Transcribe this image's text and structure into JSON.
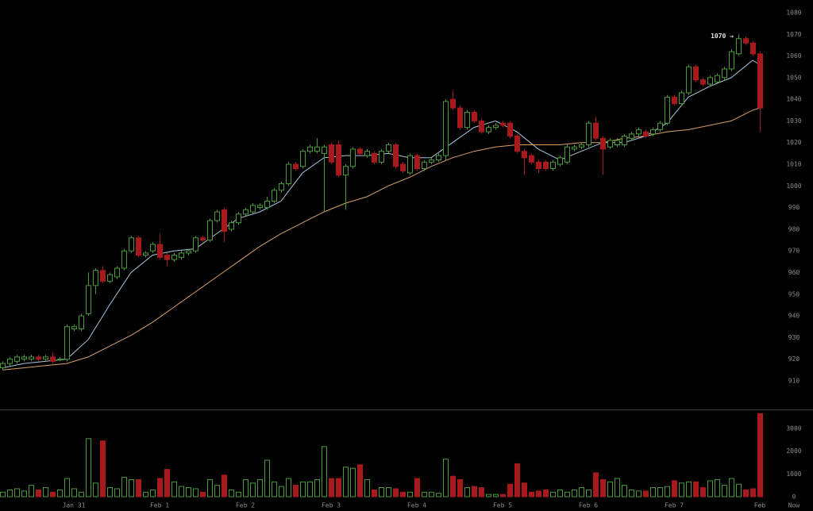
{
  "chart_data": [
    {
      "type": "candlestick",
      "categories": [
        null,
        null,
        null,
        null,
        null,
        null,
        null,
        null,
        null,
        null,
        "Jan 31",
        null,
        null,
        null,
        null,
        null,
        null,
        null,
        null,
        null,
        null,
        null,
        "Feb 1",
        null,
        null,
        null,
        null,
        null,
        null,
        null,
        null,
        null,
        null,
        null,
        "Feb 2",
        null,
        null,
        null,
        null,
        null,
        null,
        null,
        null,
        null,
        null,
        null,
        "Feb 3",
        null,
        null,
        null,
        null,
        null,
        null,
        null,
        null,
        null,
        null,
        null,
        "Feb 4",
        null,
        null,
        null,
        null,
        null,
        null,
        null,
        null,
        null,
        null,
        null,
        "Feb 5",
        null,
        null,
        null,
        null,
        null,
        null,
        null,
        null,
        null,
        null,
        null,
        "Feb 6",
        null,
        null,
        null,
        null,
        null,
        null,
        null,
        null,
        null,
        null,
        null,
        "Feb 7",
        null,
        null,
        null,
        null,
        null,
        null,
        null,
        null,
        null,
        null,
        null,
        "Feb"
      ],
      "x_end_label": "Now",
      "open": [
        916,
        918,
        919,
        920,
        920,
        921,
        920,
        921,
        920,
        920,
        934,
        934,
        941,
        954,
        961,
        956,
        958,
        962,
        970,
        976,
        968,
        970,
        973,
        968,
        966,
        967,
        969,
        970,
        976,
        975,
        984,
        989,
        980,
        983,
        987,
        988,
        990,
        990,
        993,
        998,
        1001,
        1010,
        1009,
        1016,
        1016,
        1015,
        1019,
        1019,
        1005,
        1009,
        1017,
        1014,
        1015,
        1011,
        1016,
        1019,
        1010,
        1006,
        1014,
        1008,
        1011,
        1012,
        1014,
        1040,
        1036,
        1027,
        1034,
        1030,
        1025,
        1027,
        1029,
        1029,
        1023,
        1016,
        1014,
        1011,
        1011,
        1008,
        1010,
        1011,
        1017,
        1018,
        1019,
        1029,
        1022,
        1018,
        1019,
        1019,
        1022,
        1024,
        1025,
        1024,
        1026,
        1029,
        1041,
        1038,
        1043,
        1055,
        1049,
        1047,
        1048,
        1050,
        1054,
        1061,
        1068,
        1066,
        1061
      ],
      "high": [
        919,
        921,
        922,
        922,
        922,
        922,
        922,
        923,
        921,
        936,
        936,
        941,
        960,
        962,
        963,
        960,
        963,
        971,
        977,
        977,
        970,
        974,
        978,
        969,
        969,
        970,
        971,
        977,
        977,
        985,
        989,
        990,
        984,
        988,
        990,
        992,
        992,
        995,
        999,
        1002,
        1011,
        1011,
        1017,
        1019,
        1022,
        1019,
        1020,
        1021,
        1010,
        1018,
        1018,
        1017,
        1016,
        1017,
        1020,
        1020,
        1011,
        1015,
        1015,
        1012,
        1013,
        1015,
        1040,
        1044,
        1037,
        1035,
        1035,
        1031,
        1028,
        1029,
        1030,
        1030,
        1024,
        1017,
        1015,
        1012,
        1012,
        1012,
        1014,
        1019,
        1019,
        1020,
        1030,
        1032,
        1023,
        1022,
        1022,
        1024,
        1025,
        1027,
        1026,
        1027,
        1030,
        1042,
        1042,
        1044,
        1056,
        1056,
        1050,
        1051,
        1052,
        1055,
        1063,
        1070,
        1069,
        1067,
        1062
      ],
      "low": [
        915,
        917,
        918,
        919,
        919,
        919,
        919,
        918,
        919,
        919,
        933,
        933,
        940,
        950,
        955,
        955,
        957,
        961,
        969,
        967,
        967,
        969,
        966,
        963,
        965,
        966,
        968,
        969,
        974,
        974,
        983,
        974,
        979,
        982,
        986,
        987,
        989,
        989,
        992,
        997,
        1000,
        1007,
        1008,
        1015,
        1015,
        988,
        1010,
        1004,
        989,
        1008,
        1014,
        1013,
        1010,
        1010,
        1015,
        1008,
        1006,
        1005,
        1007,
        1007,
        1010,
        1011,
        1012,
        1035,
        1026,
        1026,
        1029,
        1024,
        1024,
        1026,
        1027,
        1022,
        1015,
        1005,
        1010,
        1006,
        1007,
        1007,
        1009,
        1010,
        1016,
        1017,
        1018,
        1021,
        1005,
        1017,
        1018,
        1018,
        1021,
        1023,
        1022,
        1023,
        1025,
        1028,
        1037,
        1037,
        1042,
        1048,
        1046,
        1046,
        1047,
        1049,
        1053,
        1060,
        1065,
        1060,
        1025
      ],
      "close": [
        918,
        920,
        921,
        921,
        921,
        920,
        921,
        919,
        920,
        935,
        935,
        940,
        954,
        961,
        956,
        959,
        962,
        970,
        976,
        968,
        969,
        973,
        967,
        966,
        968,
        969,
        970,
        976,
        975,
        984,
        988,
        979,
        983,
        987,
        989,
        991,
        991,
        993,
        998,
        1001,
        1010,
        1008,
        1016,
        1018,
        1018,
        1018,
        1011,
        1005,
        1009,
        1017,
        1015,
        1016,
        1011,
        1016,
        1019,
        1009,
        1007,
        1014,
        1008,
        1011,
        1012,
        1014,
        1039,
        1036,
        1027,
        1034,
        1030,
        1025,
        1027,
        1028,
        1028,
        1023,
        1016,
        1013,
        1011,
        1008,
        1008,
        1011,
        1013,
        1018,
        1018,
        1019,
        1029,
        1022,
        1017,
        1021,
        1021,
        1023,
        1024,
        1026,
        1023,
        1026,
        1029,
        1041,
        1038,
        1043,
        1055,
        1049,
        1047,
        1050,
        1051,
        1054,
        1062,
        1068,
        1066,
        1061,
        1036
      ],
      "up_color": "#4a9a3a",
      "down_color": "#a8191c",
      "moving_averages": [
        {
          "color": "#a9c6dc",
          "x": [
            0,
            3,
            6,
            9,
            12,
            15,
            18,
            21,
            24,
            27,
            30,
            33,
            36,
            39,
            42,
            45,
            48,
            51,
            54,
            57,
            60,
            63,
            66,
            69,
            72,
            75,
            78,
            81,
            84,
            87,
            90,
            93,
            96,
            99,
            102,
            105,
            106
          ],
          "values": [
            916,
            918,
            919,
            920,
            929,
            945,
            960,
            968,
            970,
            971,
            978,
            985,
            988,
            993,
            1006,
            1013,
            1014,
            1014,
            1015,
            1013,
            1013,
            1020,
            1027,
            1030,
            1025,
            1017,
            1012,
            1016,
            1020,
            1020,
            1023,
            1029,
            1041,
            1046,
            1050,
            1058,
            1056
          ]
        },
        {
          "color": "#d9a068",
          "x": [
            0,
            3,
            6,
            9,
            12,
            15,
            18,
            21,
            24,
            27,
            30,
            33,
            36,
            39,
            42,
            45,
            48,
            51,
            54,
            57,
            60,
            63,
            66,
            69,
            72,
            75,
            78,
            81,
            84,
            87,
            90,
            93,
            96,
            99,
            102,
            105,
            106
          ],
          "values": [
            915,
            916,
            917,
            918,
            921,
            926,
            931,
            937,
            944,
            951,
            958,
            965,
            972,
            978,
            983,
            988,
            992,
            995,
            1000,
            1004,
            1009,
            1013,
            1016,
            1018,
            1019,
            1019,
            1019,
            1020,
            1020,
            1022,
            1023,
            1025,
            1026,
            1028,
            1030,
            1035,
            1036
          ]
        }
      ],
      "annotation": {
        "text": "1070 →",
        "value": 1070
      },
      "ylim": [
        897.15,
        1085.86
      ],
      "yticks": [
        910,
        920,
        930,
        940,
        950,
        960,
        970,
        980,
        990,
        1000,
        1010,
        1020,
        1030,
        1040,
        1050,
        1060,
        1070,
        1080
      ]
    },
    {
      "type": "bar",
      "values": [
        200,
        300,
        350,
        250,
        500,
        300,
        400,
        200,
        300,
        800,
        350,
        200,
        2550,
        600,
        2450,
        400,
        350,
        850,
        750,
        750,
        200,
        300,
        800,
        1200,
        650,
        450,
        400,
        350,
        200,
        750,
        500,
        950,
        300,
        200,
        750,
        600,
        750,
        1600,
        650,
        450,
        800,
        500,
        650,
        650,
        750,
        2200,
        800,
        800,
        1300,
        1250,
        1400,
        750,
        300,
        400,
        400,
        350,
        200,
        200,
        800,
        200,
        200,
        150,
        1650,
        900,
        750,
        400,
        450,
        400,
        100,
        100,
        100,
        550,
        1450,
        600,
        200,
        250,
        300,
        200,
        300,
        200,
        300,
        400,
        300,
        1050,
        750,
        650,
        800,
        500,
        300,
        250,
        250,
        400,
        400,
        450,
        700,
        600,
        650,
        650,
        400,
        700,
        750,
        500,
        800,
        550,
        300,
        350,
        3650
      ],
      "ylim": [
        -627,
        3798
      ],
      "yticks": [
        0,
        1000,
        2000,
        3000
      ]
    }
  ]
}
